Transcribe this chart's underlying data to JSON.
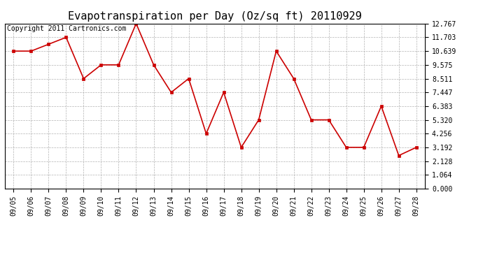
{
  "title": "Evapotranspiration per Day (Oz/sq ft) 20110929",
  "copyright": "Copyright 2011 Cartronics.com",
  "dates": [
    "09/05",
    "09/06",
    "09/07",
    "09/08",
    "09/09",
    "09/10",
    "09/11",
    "09/12",
    "09/13",
    "09/14",
    "09/15",
    "09/16",
    "09/17",
    "09/18",
    "09/19",
    "09/20",
    "09/21",
    "09/22",
    "09/23",
    "09/24",
    "09/25",
    "09/26",
    "09/27",
    "09/28"
  ],
  "values": [
    10.639,
    10.639,
    11.17,
    11.703,
    8.511,
    9.575,
    9.575,
    12.767,
    9.575,
    7.447,
    8.511,
    4.256,
    7.447,
    3.192,
    5.32,
    10.639,
    8.511,
    5.32,
    5.32,
    3.192,
    3.192,
    6.383,
    2.56,
    3.192
  ],
  "line_color": "#cc0000",
  "marker_color": "#cc0000",
  "background_color": "#ffffff",
  "grid_color": "#aaaaaa",
  "ylim": [
    0.0,
    12.767
  ],
  "yticks": [
    0.0,
    1.064,
    2.128,
    3.192,
    4.256,
    5.32,
    6.383,
    7.447,
    8.511,
    9.575,
    10.639,
    11.703,
    12.767
  ],
  "title_fontsize": 11,
  "copyright_fontsize": 7,
  "tick_fontsize": 7
}
